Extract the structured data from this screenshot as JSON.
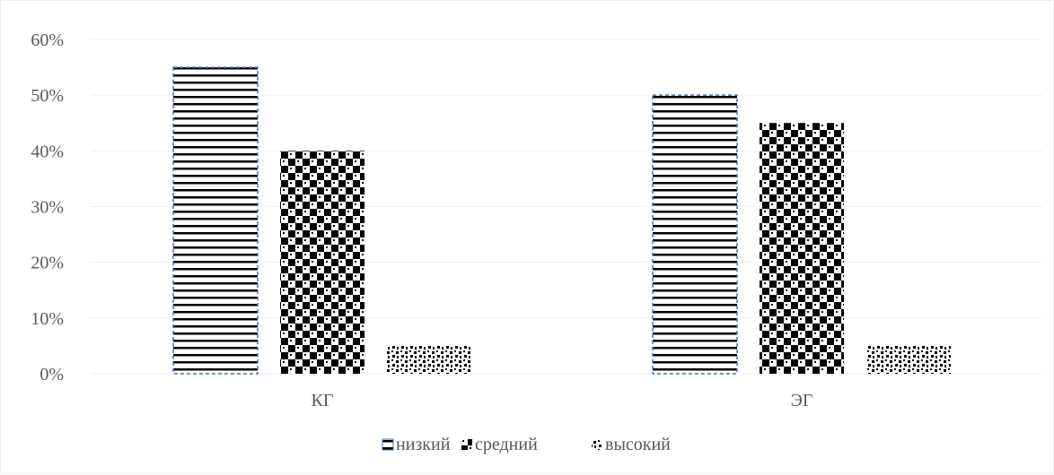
{
  "chart_data": {
    "type": "bar",
    "categories": [
      "КГ",
      "ЭГ"
    ],
    "series": [
      {
        "name": "низкий",
        "values": [
          55,
          50
        ],
        "pattern": "horizontal-stripes",
        "border_color": "#4472c4"
      },
      {
        "name": "средний",
        "values": [
          40,
          45
        ],
        "pattern": "checker",
        "border_color": "none"
      },
      {
        "name": "высокий",
        "values": [
          5,
          5
        ],
        "pattern": "confetti",
        "border_color": "none"
      }
    ],
    "y_ticks": [
      "0%",
      "10%",
      "20%",
      "30%",
      "40%",
      "50%",
      "60%"
    ],
    "ylim": [
      0,
      60
    ],
    "value_format": "percent",
    "grid": true,
    "legend_position": "bottom",
    "title": "",
    "xlabel": "",
    "ylabel": ""
  },
  "colors": {
    "bar_fill": "#000000",
    "bar_background": "#ffffff",
    "gridline": "#f0f0f0",
    "axis_text": "#595959",
    "series_border": "#4472c4"
  }
}
